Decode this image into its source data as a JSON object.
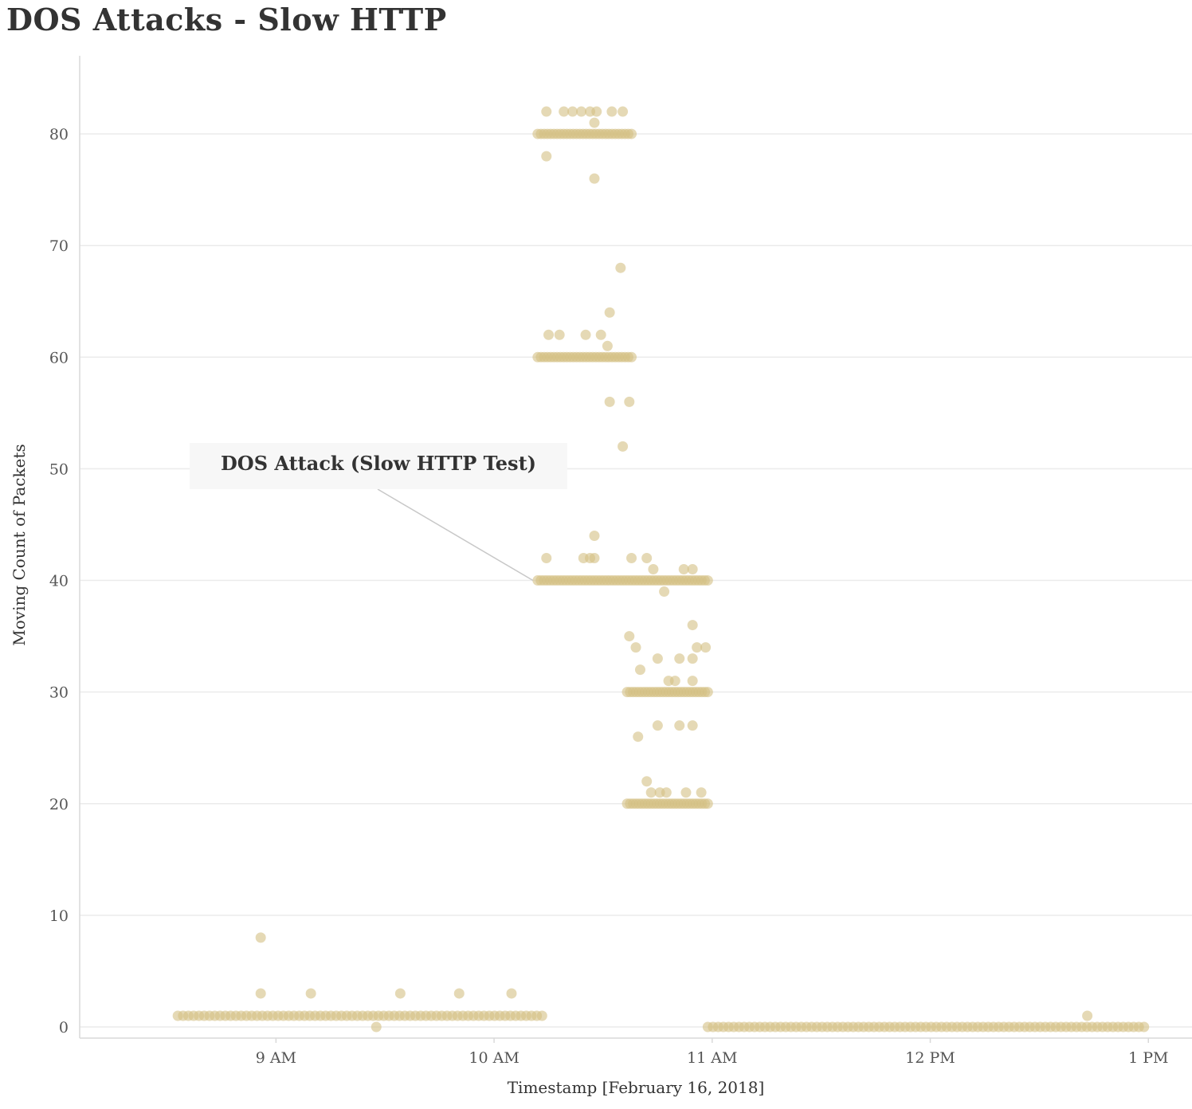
{
  "chart_data": {
    "type": "scatter",
    "title": "DOS Attacks - Slow HTTP",
    "xlabel": "Timestamp [February 16, 2018]",
    "ylabel": "Moving Count of Packets",
    "x_ticks": [
      "9 AM",
      "10 AM",
      "11 AM",
      "12 PM",
      "1 PM"
    ],
    "x_tick_hours": [
      9,
      10,
      11,
      12,
      13
    ],
    "y_ticks": [
      0,
      10,
      20,
      30,
      40,
      50,
      60,
      70,
      80
    ],
    "xlim_hours": [
      8.1,
      13.2
    ],
    "ylim": [
      -1,
      87
    ],
    "grid": true,
    "point_color": "#d3bf83",
    "annotation": {
      "text": "DOS Attack (Slow HTTP Test)",
      "target_hour": 10.2,
      "target_y": 40
    },
    "clusters": [
      {
        "from_hour": 8.55,
        "to_hour": 10.22,
        "y": 1,
        "count": 70
      },
      {
        "from_hour": 10.98,
        "to_hour": 12.98,
        "y": 0,
        "count": 85
      },
      {
        "from_hour": 10.2,
        "to_hour": 10.63,
        "y": 80,
        "count": 30
      },
      {
        "from_hour": 10.2,
        "to_hour": 10.63,
        "y": 60,
        "count": 30
      },
      {
        "from_hour": 10.2,
        "to_hour": 10.98,
        "y": 40,
        "count": 55
      },
      {
        "from_hour": 10.61,
        "to_hour": 10.98,
        "y": 30,
        "count": 28
      },
      {
        "from_hour": 10.61,
        "to_hour": 10.98,
        "y": 20,
        "count": 28
      }
    ],
    "points": [
      [
        8.93,
        8
      ],
      [
        8.93,
        3
      ],
      [
        9.16,
        3
      ],
      [
        9.46,
        0
      ],
      [
        9.57,
        3
      ],
      [
        9.84,
        3
      ],
      [
        10.08,
        3
      ],
      [
        10.24,
        82
      ],
      [
        10.32,
        82
      ],
      [
        10.36,
        82
      ],
      [
        10.4,
        82
      ],
      [
        10.44,
        82
      ],
      [
        10.47,
        82
      ],
      [
        10.54,
        82
      ],
      [
        10.59,
        82
      ],
      [
        10.46,
        81
      ],
      [
        10.24,
        78
      ],
      [
        10.46,
        76
      ],
      [
        10.58,
        68
      ],
      [
        10.53,
        64
      ],
      [
        10.25,
        62
      ],
      [
        10.3,
        62
      ],
      [
        10.42,
        62
      ],
      [
        10.49,
        62
      ],
      [
        10.52,
        61
      ],
      [
        10.53,
        56
      ],
      [
        10.62,
        56
      ],
      [
        10.59,
        52
      ],
      [
        10.46,
        44
      ],
      [
        10.24,
        42
      ],
      [
        10.41,
        42
      ],
      [
        10.44,
        42
      ],
      [
        10.46,
        42
      ],
      [
        10.63,
        42
      ],
      [
        10.7,
        42
      ],
      [
        10.73,
        41
      ],
      [
        10.87,
        41
      ],
      [
        10.91,
        41
      ],
      [
        10.78,
        39
      ],
      [
        10.91,
        36
      ],
      [
        10.62,
        35
      ],
      [
        10.65,
        34
      ],
      [
        10.93,
        34
      ],
      [
        10.97,
        34
      ],
      [
        10.75,
        33
      ],
      [
        10.85,
        33
      ],
      [
        10.91,
        33
      ],
      [
        10.67,
        32
      ],
      [
        10.8,
        31
      ],
      [
        10.83,
        31
      ],
      [
        10.91,
        31
      ],
      [
        10.75,
        27
      ],
      [
        10.85,
        27
      ],
      [
        10.91,
        27
      ],
      [
        10.66,
        26
      ],
      [
        10.7,
        22
      ],
      [
        10.72,
        21
      ],
      [
        10.76,
        21
      ],
      [
        10.79,
        21
      ],
      [
        10.88,
        21
      ],
      [
        10.95,
        21
      ],
      [
        12.72,
        1
      ]
    ]
  }
}
